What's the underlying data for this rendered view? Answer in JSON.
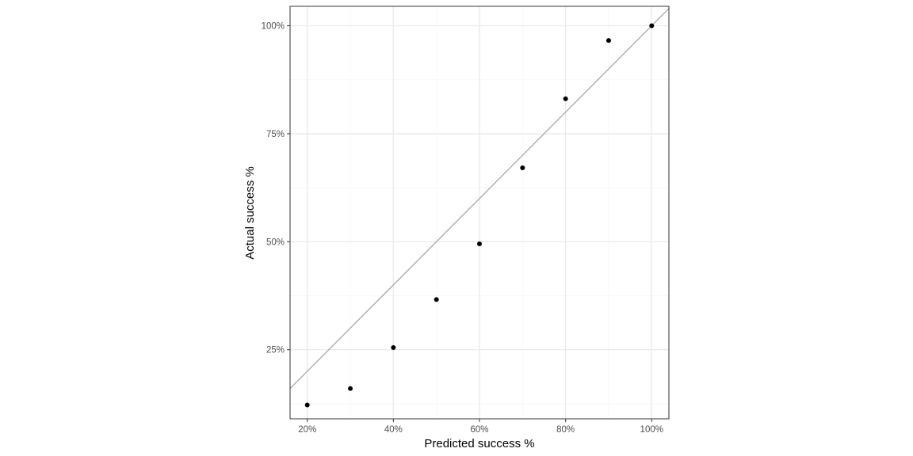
{
  "chart_data": {
    "type": "scatter",
    "title": "",
    "xlabel": "Predicted success %",
    "ylabel": "Actual success %",
    "xlim": [
      0.16,
      1.04
    ],
    "ylim": [
      0.09,
      1.045
    ],
    "x_ticks": [
      0.2,
      0.4,
      0.6,
      0.8,
      1.0
    ],
    "x_tick_labels": [
      "20%",
      "40%",
      "60%",
      "80%",
      "100%"
    ],
    "x_minor_ticks": [
      0.3,
      0.5,
      0.7,
      0.9
    ],
    "y_ticks": [
      0.25,
      0.5,
      0.75,
      1.0
    ],
    "y_tick_labels": [
      "25%",
      "50%",
      "75%",
      "100%"
    ],
    "y_minor_ticks": [
      0.125,
      0.375,
      0.625,
      0.875
    ],
    "grid": true,
    "reference_line": {
      "type": "identity",
      "slope": 1,
      "intercept": 0,
      "color": "#a6a6a6"
    },
    "series": [
      {
        "color": "#000000",
        "points": [
          {
            "x": 0.2,
            "y": 0.122
          },
          {
            "x": 0.3,
            "y": 0.16
          },
          {
            "x": 0.4,
            "y": 0.255
          },
          {
            "x": 0.5,
            "y": 0.366
          },
          {
            "x": 0.6,
            "y": 0.495
          },
          {
            "x": 0.7,
            "y": 0.671
          },
          {
            "x": 0.8,
            "y": 0.831
          },
          {
            "x": 0.9,
            "y": 0.966
          },
          {
            "x": 1.0,
            "y": 1.0
          }
        ]
      }
    ]
  },
  "colors": {
    "panel_border": "#333333",
    "grid_major": "#ebebeb",
    "grid_minor": "#f5f5f5",
    "tick": "#333333"
  }
}
